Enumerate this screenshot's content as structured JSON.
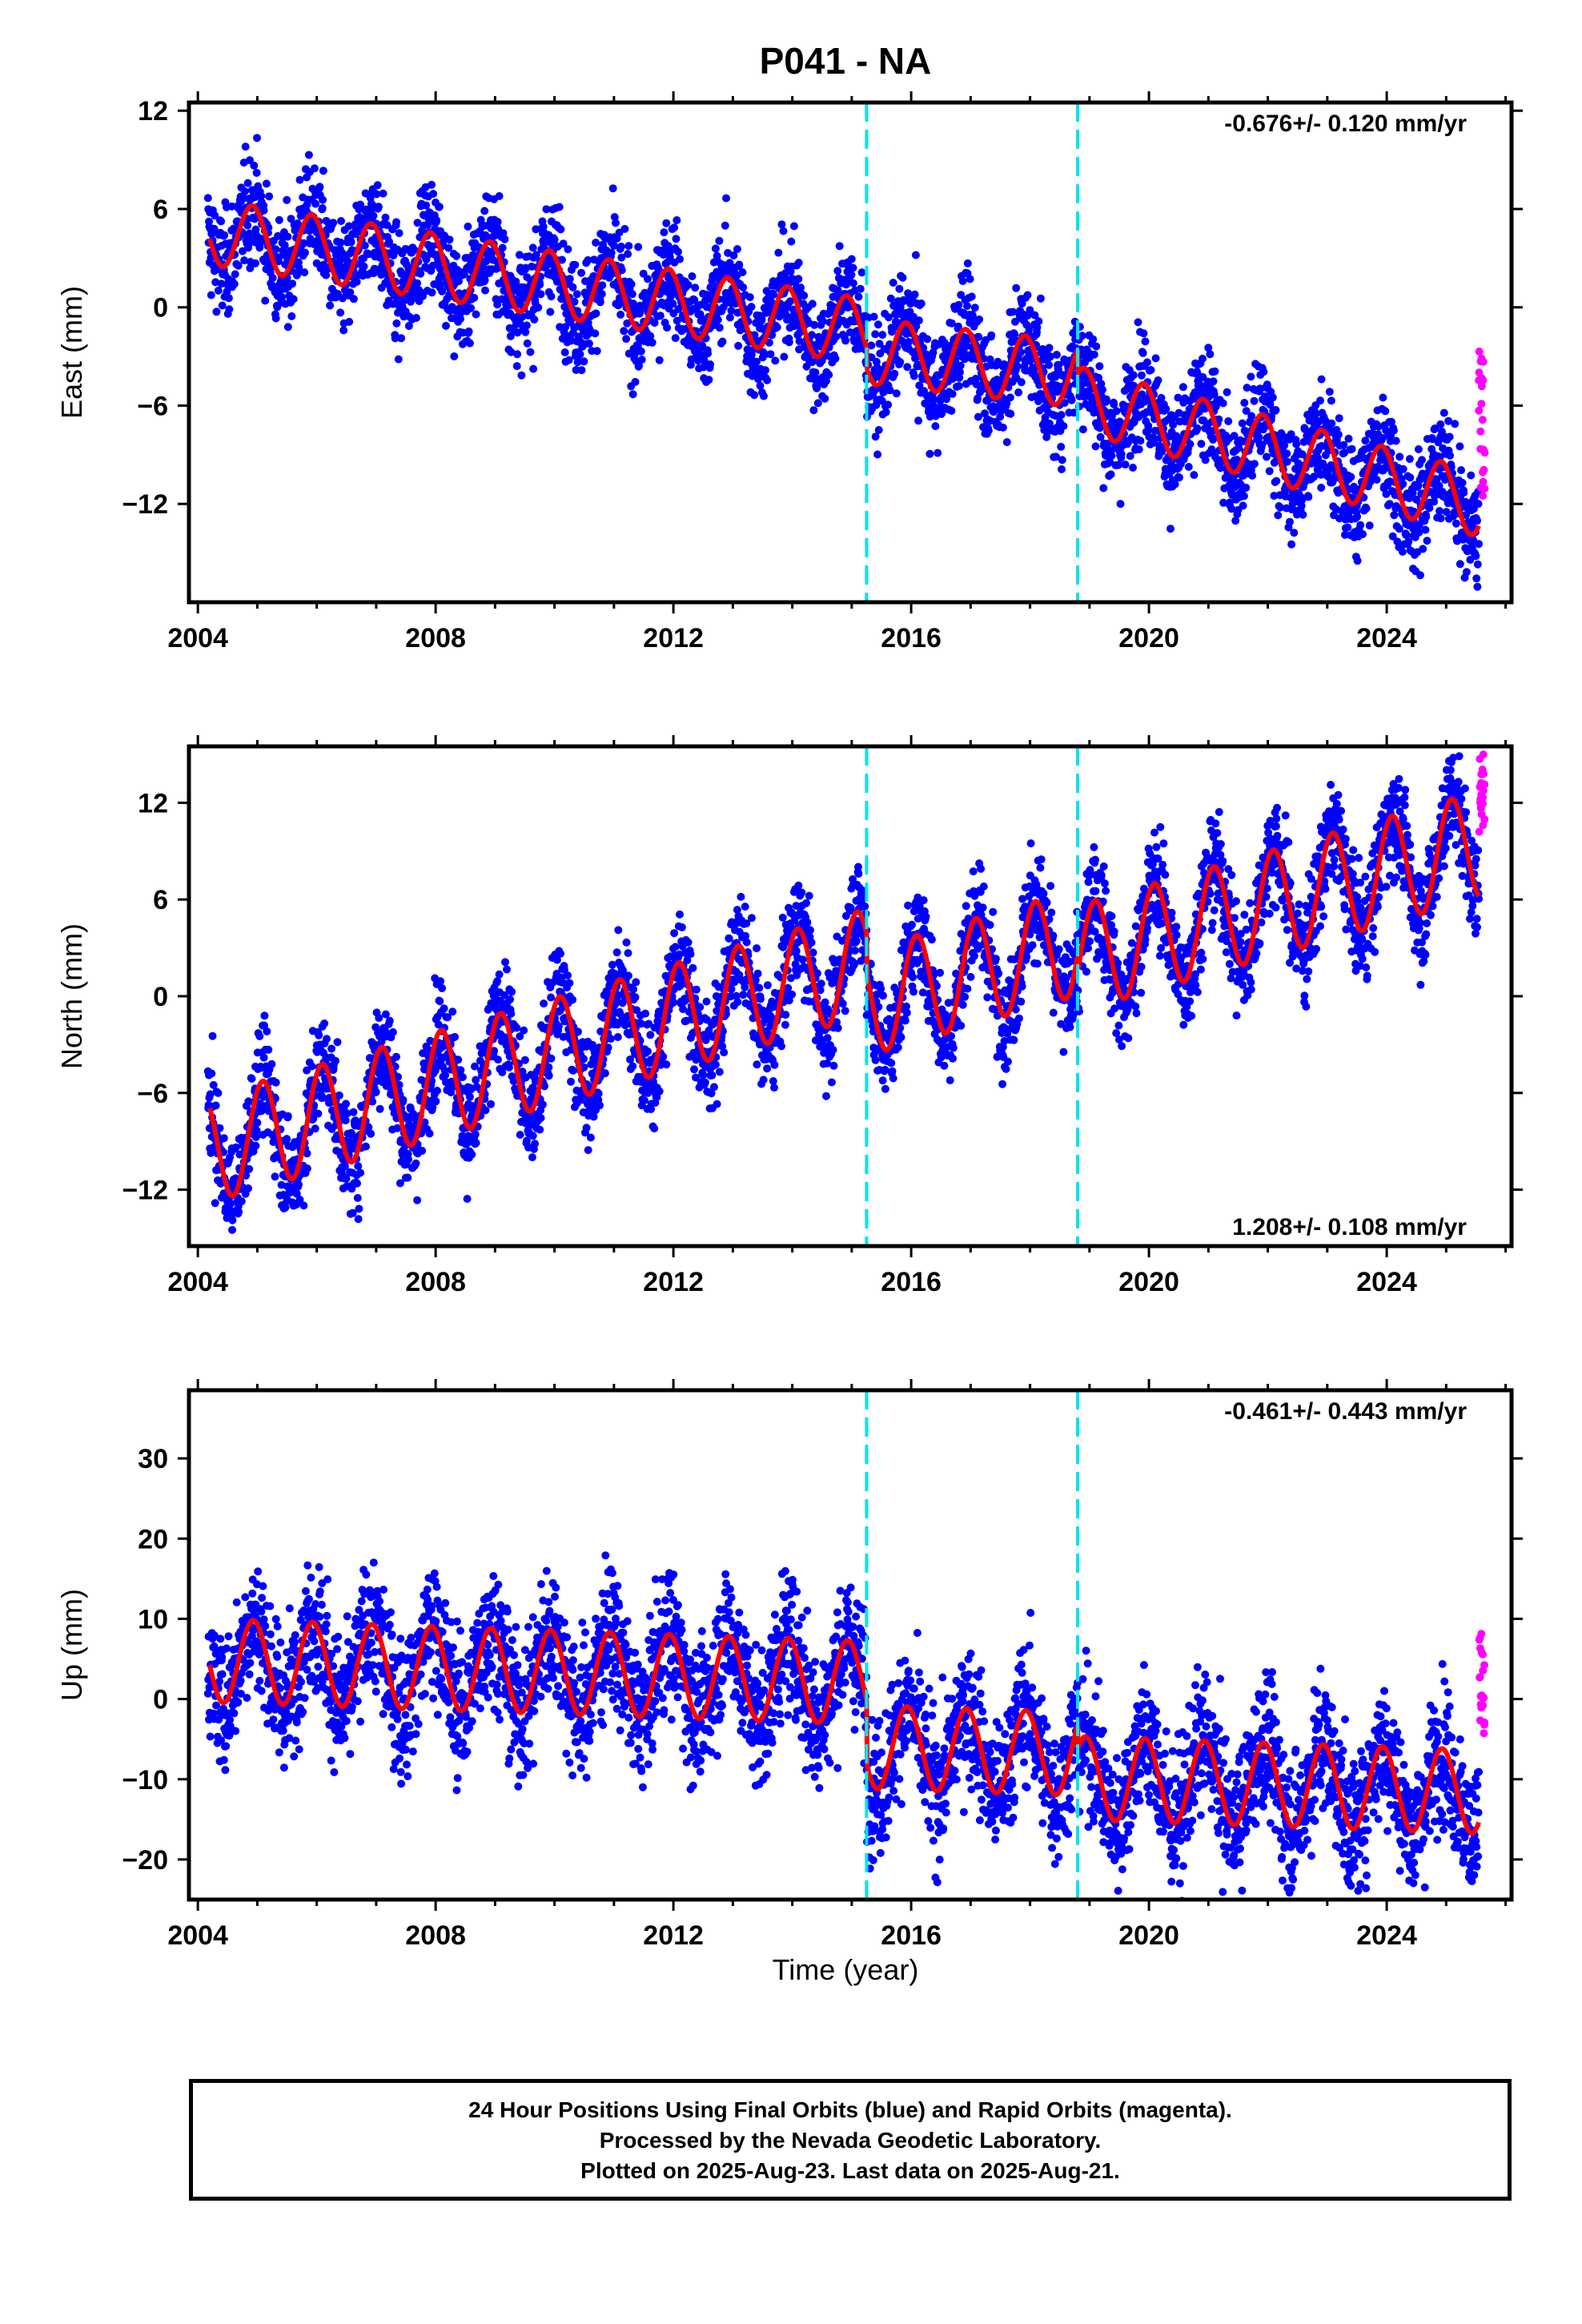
{
  "chart_data": {
    "type": "scatter",
    "title": "P041 - NA",
    "xlabel": "Time (year)",
    "x_ticks": [
      "2004",
      "2008",
      "2012",
      "2016",
      "2020",
      "2024"
    ],
    "xlim": [
      2003.85,
      2026.1
    ],
    "offset_lines": [
      2015.25,
      2018.8
    ],
    "colors": {
      "final": "#0000ff",
      "rapid": "#ff00ff",
      "model": "#ff0000",
      "offsets": "#00e5ee"
    },
    "panels": [
      {
        "ylabel": "East (mm)",
        "ylim": [
          -18,
          12.5
        ],
        "y_ticks": [
          12,
          6,
          0,
          -6,
          -12
        ],
        "y_tick_labels": [
          "12",
          "6",
          "0",
          "−6",
          "−12"
        ],
        "rate": "-0.676+/- 0.120 mm/yr",
        "rate_position": "top-right",
        "model": {
          "start": 2004.2,
          "end": 2025.55,
          "y0": 4.6,
          "slope_segments": [
            [
              2004.2,
              2015.25,
              -0.55
            ],
            [
              2015.25,
              2018.8,
              -0.4
            ],
            [
              2018.8,
              2025.6,
              -0.95
            ]
          ],
          "jumps": [
            [
              2015.25,
              -1.2
            ],
            [
              2018.8,
              -1.5
            ]
          ],
          "amplitude": 2.0,
          "phase": 2.1
        },
        "rapid_range": [
          -12,
          -2.5
        ]
      },
      {
        "ylabel": "North (mm)",
        "ylim": [
          -15.5,
          15.5
        ],
        "y_ticks": [
          12,
          6,
          0,
          -6,
          -12
        ],
        "y_tick_labels": [
          "12",
          "6",
          "0",
          "−6",
          "−12"
        ],
        "rate": "1.208+/- 0.108 mm/yr",
        "rate_position": "bottom-right",
        "model": {
          "start": 2004.2,
          "end": 2025.55,
          "y0": -9.5,
          "slope_segments": [
            [
              2004.2,
              2025.6,
              1.05
            ]
          ],
          "jumps": [
            [
              2015.25,
              -2.5
            ],
            [
              2018.8,
              -1.0
            ]
          ],
          "amplitude": 3.3,
          "phase": 1.0
        },
        "rapid_range": [
          10,
          15
        ]
      },
      {
        "ylabel": "Up (mm)",
        "ylim": [
          -25,
          38.5
        ],
        "y_ticks": [
          30,
          20,
          10,
          0,
          -10,
          -20
        ],
        "y_tick_labels": [
          "30",
          "20",
          "10",
          "0",
          "−10",
          "−20"
        ],
        "rate": "-0.461+/- 0.443 mm/yr",
        "rate_position": "top-right",
        "model": {
          "start": 2004.2,
          "end": 2025.55,
          "y0": 4.8,
          "slope_segments": [
            [
              2004.2,
              2025.6,
              -0.25
            ]
          ],
          "jumps": [
            [
              2015.25,
              -8.0
            ],
            [
              2018.8,
              -3.0
            ]
          ],
          "amplitude": 5.2,
          "phase": 2.0
        },
        "rapid_range": [
          -6,
          9
        ]
      }
    ],
    "footer": [
      "24 Hour Positions Using Final Orbits (blue) and Rapid Orbits (magenta).",
      "Processed by the Nevada Geodetic Laboratory.",
      "Plotted on 2025-Aug-23. Last data on 2025-Aug-21."
    ]
  }
}
